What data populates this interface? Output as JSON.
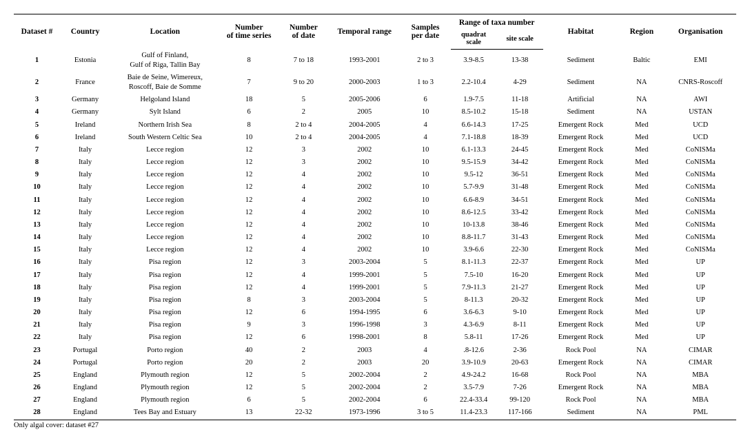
{
  "headers": {
    "col1": "Dataset #",
    "col2": "Country",
    "col3": "Location",
    "col4": "Number\nof time series",
    "col5": "Number\nof date",
    "col6": "Temporal range",
    "col7": "Samples\nper date",
    "col8": "Range of taxa number",
    "col8a": "quadrat\nscale",
    "col8b": "site scale",
    "col9": "Habitat",
    "col10": "Region",
    "col11": "Organisation"
  },
  "rows": [
    {
      "id": "1",
      "country": "Estonia",
      "location": "Gulf of Finland,\nGulf of Riga, Tallin Bay",
      "nts": "8",
      "nd": "7 to 18",
      "tr": "1993-2001",
      "spd": "2 to 3",
      "quad": "3.9-8.5",
      "site": "13-38",
      "habitat": "Sediment",
      "region": "Baltic",
      "org": "EMI"
    },
    {
      "id": "2",
      "country": "France",
      "location": "Baie de Seine, Wimereux,\nRoscoff, Baie de Somme",
      "nts": "7",
      "nd": "9 to 20",
      "tr": "2000-2003",
      "spd": "1 to 3",
      "quad": "2.2-10.4",
      "site": "4-29",
      "habitat": "Sediment",
      "region": "NA",
      "org": "CNRS-Roscoff"
    },
    {
      "id": "3",
      "country": "Germany",
      "location": "Helgoland Island",
      "nts": "18",
      "nd": "5",
      "tr": "2005-2006",
      "spd": "6",
      "quad": "1.9-7.5",
      "site": "11-18",
      "habitat": "Artificial",
      "region": "NA",
      "org": "AWI"
    },
    {
      "id": "4",
      "country": "Germany",
      "location": "Sylt Island",
      "nts": "6",
      "nd": "2",
      "tr": "2005",
      "spd": "10",
      "quad": "8.5-10.2",
      "site": "15-18",
      "habitat": "Sediment",
      "region": "NA",
      "org": "USTAN"
    },
    {
      "id": "5",
      "country": "Ireland",
      "location": "Northern Irish Sea",
      "nts": "8",
      "nd": "2 to 4",
      "tr": "2004-2005",
      "spd": "4",
      "quad": "6.6-14.3",
      "site": "17-25",
      "habitat": "Emergent Rock",
      "region": "Med",
      "org": "UCD"
    },
    {
      "id": "6",
      "country": "Ireland",
      "location": "South Western Celtic Sea",
      "nts": "10",
      "nd": "2 to 4",
      "tr": "2004-2005",
      "spd": "4",
      "quad": "7.1-18.8",
      "site": "18-39",
      "habitat": "Emergent Rock",
      "region": "Med",
      "org": "UCD"
    },
    {
      "id": "7",
      "country": "Italy",
      "location": "Lecce region",
      "nts": "12",
      "nd": "3",
      "tr": "2002",
      "spd": "10",
      "quad": "6.1-13.3",
      "site": "24-45",
      "habitat": "Emergent Rock",
      "region": "Med",
      "org": "CoNISMa"
    },
    {
      "id": "8",
      "country": "Italy",
      "location": "Lecce region",
      "nts": "12",
      "nd": "3",
      "tr": "2002",
      "spd": "10",
      "quad": "9.5-15.9",
      "site": "34-42",
      "habitat": "Emergent Rock",
      "region": "Med",
      "org": "CoNISMa"
    },
    {
      "id": "9",
      "country": "Italy",
      "location": "Lecce region",
      "nts": "12",
      "nd": "4",
      "tr": "2002",
      "spd": "10",
      "quad": "9.5-12",
      "site": "36-51",
      "habitat": "Emergent Rock",
      "region": "Med",
      "org": "CoNISMa"
    },
    {
      "id": "10",
      "country": "Italy",
      "location": "Lecce region",
      "nts": "12",
      "nd": "4",
      "tr": "2002",
      "spd": "10",
      "quad": "5.7-9.9",
      "site": "31-48",
      "habitat": "Emergent Rock",
      "region": "Med",
      "org": "CoNISMa"
    },
    {
      "id": "11",
      "country": "Italy",
      "location": "Lecce region",
      "nts": "12",
      "nd": "4",
      "tr": "2002",
      "spd": "10",
      "quad": "6.6-8.9",
      "site": "34-51",
      "habitat": "Emergent Rock",
      "region": "Med",
      "org": "CoNISMa"
    },
    {
      "id": "12",
      "country": "Italy",
      "location": "Lecce region",
      "nts": "12",
      "nd": "4",
      "tr": "2002",
      "spd": "10",
      "quad": "8.6-12.5",
      "site": "33-42",
      "habitat": "Emergent Rock",
      "region": "Med",
      "org": "CoNISMa"
    },
    {
      "id": "13",
      "country": "Italy",
      "location": "Lecce region",
      "nts": "12",
      "nd": "4",
      "tr": "2002",
      "spd": "10",
      "quad": "10-13.8",
      "site": "38-46",
      "habitat": "Emergent Rock",
      "region": "Med",
      "org": "CoNISMa"
    },
    {
      "id": "14",
      "country": "Italy",
      "location": "Lecce region",
      "nts": "12",
      "nd": "4",
      "tr": "2002",
      "spd": "10",
      "quad": "8.8-11.7",
      "site": "31-43",
      "habitat": "Emergent Rock",
      "region": "Med",
      "org": "CoNISMa"
    },
    {
      "id": "15",
      "country": "Italy",
      "location": "Lecce region",
      "nts": "12",
      "nd": "4",
      "tr": "2002",
      "spd": "10",
      "quad": "3.9-6.6",
      "site": "22-30",
      "habitat": "Emergent Rock",
      "region": "Med",
      "org": "CoNISMa"
    },
    {
      "id": "16",
      "country": "Italy",
      "location": "Pisa region",
      "nts": "12",
      "nd": "3",
      "tr": "2003-2004",
      "spd": "5",
      "quad": "8.1-11.3",
      "site": "22-37",
      "habitat": "Emergent Rock",
      "region": "Med",
      "org": "UP"
    },
    {
      "id": "17",
      "country": "Italy",
      "location": "Pisa region",
      "nts": "12",
      "nd": "4",
      "tr": "1999-2001",
      "spd": "5",
      "quad": "7.5-10",
      "site": "16-20",
      "habitat": "Emergent Rock",
      "region": "Med",
      "org": "UP"
    },
    {
      "id": "18",
      "country": "Italy",
      "location": "Pisa region",
      "nts": "12",
      "nd": "4",
      "tr": "1999-2001",
      "spd": "5",
      "quad": "7.9-11.3",
      "site": "21-27",
      "habitat": "Emergent Rock",
      "region": "Med",
      "org": "UP"
    },
    {
      "id": "19",
      "country": "Italy",
      "location": "Pisa region",
      "nts": "8",
      "nd": "3",
      "tr": "2003-2004",
      "spd": "5",
      "quad": "8-11.3",
      "site": "20-32",
      "habitat": "Emergent Rock",
      "region": "Med",
      "org": "UP"
    },
    {
      "id": "20",
      "country": "Italy",
      "location": "Pisa region",
      "nts": "12",
      "nd": "6",
      "tr": "1994-1995",
      "spd": "6",
      "quad": "3.6-6.3",
      "site": "9-10",
      "habitat": "Emergent Rock",
      "region": "Med",
      "org": "UP"
    },
    {
      "id": "21",
      "country": "Italy",
      "location": "Pisa region",
      "nts": "9",
      "nd": "3",
      "tr": "1996-1998",
      "spd": "3",
      "quad": "4.3-6.9",
      "site": "8-11",
      "habitat": "Emergent Rock",
      "region": "Med",
      "org": "UP"
    },
    {
      "id": "22",
      "country": "Italy",
      "location": "Pisa region",
      "nts": "12",
      "nd": "6",
      "tr": "1998-2001",
      "spd": "8",
      "quad": "5.8-11",
      "site": "17-26",
      "habitat": "Emergent Rock",
      "region": "Med",
      "org": "UP"
    },
    {
      "id": "23",
      "country": "Portugal",
      "location": "Porto region",
      "nts": "40",
      "nd": "2",
      "tr": "2003",
      "spd": "4",
      "quad": ".8-12.6",
      "site": "2-36",
      "habitat": "Rock Pool",
      "region": "NA",
      "org": "CIMAR"
    },
    {
      "id": "24",
      "country": "Portugal",
      "location": "Porto region",
      "nts": "20",
      "nd": "2",
      "tr": "2003",
      "spd": "20",
      "quad": "3.9-10.9",
      "site": "20-63",
      "habitat": "Emergent Rock",
      "region": "NA",
      "org": "CIMAR"
    },
    {
      "id": "25",
      "country": "England",
      "location": "Plymouth region",
      "nts": "12",
      "nd": "5",
      "tr": "2002-2004",
      "spd": "2",
      "quad": "4.9-24.2",
      "site": "16-68",
      "habitat": "Rock Pool",
      "region": "NA",
      "org": "MBA"
    },
    {
      "id": "26",
      "country": "England",
      "location": "Plymouth region",
      "nts": "12",
      "nd": "5",
      "tr": "2002-2004",
      "spd": "2",
      "quad": "3.5-7.9",
      "site": "7-26",
      "habitat": "Emergent Rock",
      "region": "NA",
      "org": "MBA"
    },
    {
      "id": "27",
      "country": "England",
      "location": "Plymouth region",
      "nts": "6",
      "nd": "5",
      "tr": "2002-2004",
      "spd": "6",
      "quad": "22.4-33.4",
      "site": "99-120",
      "habitat": "Rock Pool",
      "region": "NA",
      "org": "MBA"
    },
    {
      "id": "28",
      "country": "England",
      "location": "Tees Bay and Estuary",
      "nts": "13",
      "nd": "22-32",
      "tr": "1973-1996",
      "spd": "3 to 5",
      "quad": "11.4-23.3",
      "site": "117-166",
      "habitat": "Sediment",
      "region": "NA",
      "org": "PML"
    }
  ],
  "footnote": "Only algal cover: dataset #27"
}
